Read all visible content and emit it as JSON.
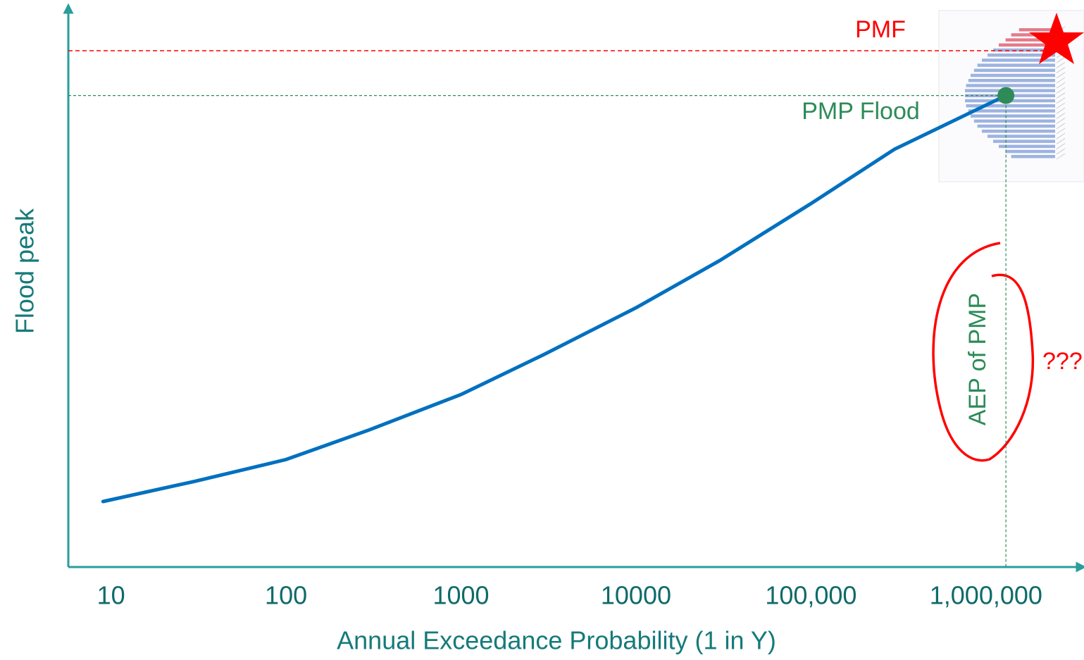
{
  "chart_data": {
    "type": "line",
    "x_label": "Annual Exceedance Probability (1 in Y)",
    "y_label": "Flood peak",
    "x": [
      9,
      30,
      100,
      300,
      1000,
      3000,
      10000,
      30000,
      100000,
      300000,
      1300000
    ],
    "values": [
      11.7,
      15.3,
      19.2,
      24.5,
      30.8,
      38.0,
      46.3,
      54.7,
      64.9,
      74.6,
      84.2
    ],
    "color": "#0070c0",
    "xscale": "log",
    "xlim": [
      5.7,
      3500000
    ],
    "ylim": [
      0,
      100
    ],
    "xticks": [
      10,
      100,
      1000,
      10000,
      {
        "value": 100000,
        "label": "100,000"
      },
      {
        "value": 1000000,
        "label": "1,000,000"
      }
    ],
    "annotations": [
      {
        "text": "PMF",
        "y": 92.2,
        "color": "#ff0000"
      },
      {
        "text": "PMP Flood",
        "x": 1300000,
        "y": 84.2,
        "color": "#2e8b57"
      },
      {
        "text": "AEP of PMP",
        "x": 1300000,
        "color": "#2e8b57"
      },
      {
        "text": "???",
        "color": "#ff0000"
      }
    ]
  }
}
